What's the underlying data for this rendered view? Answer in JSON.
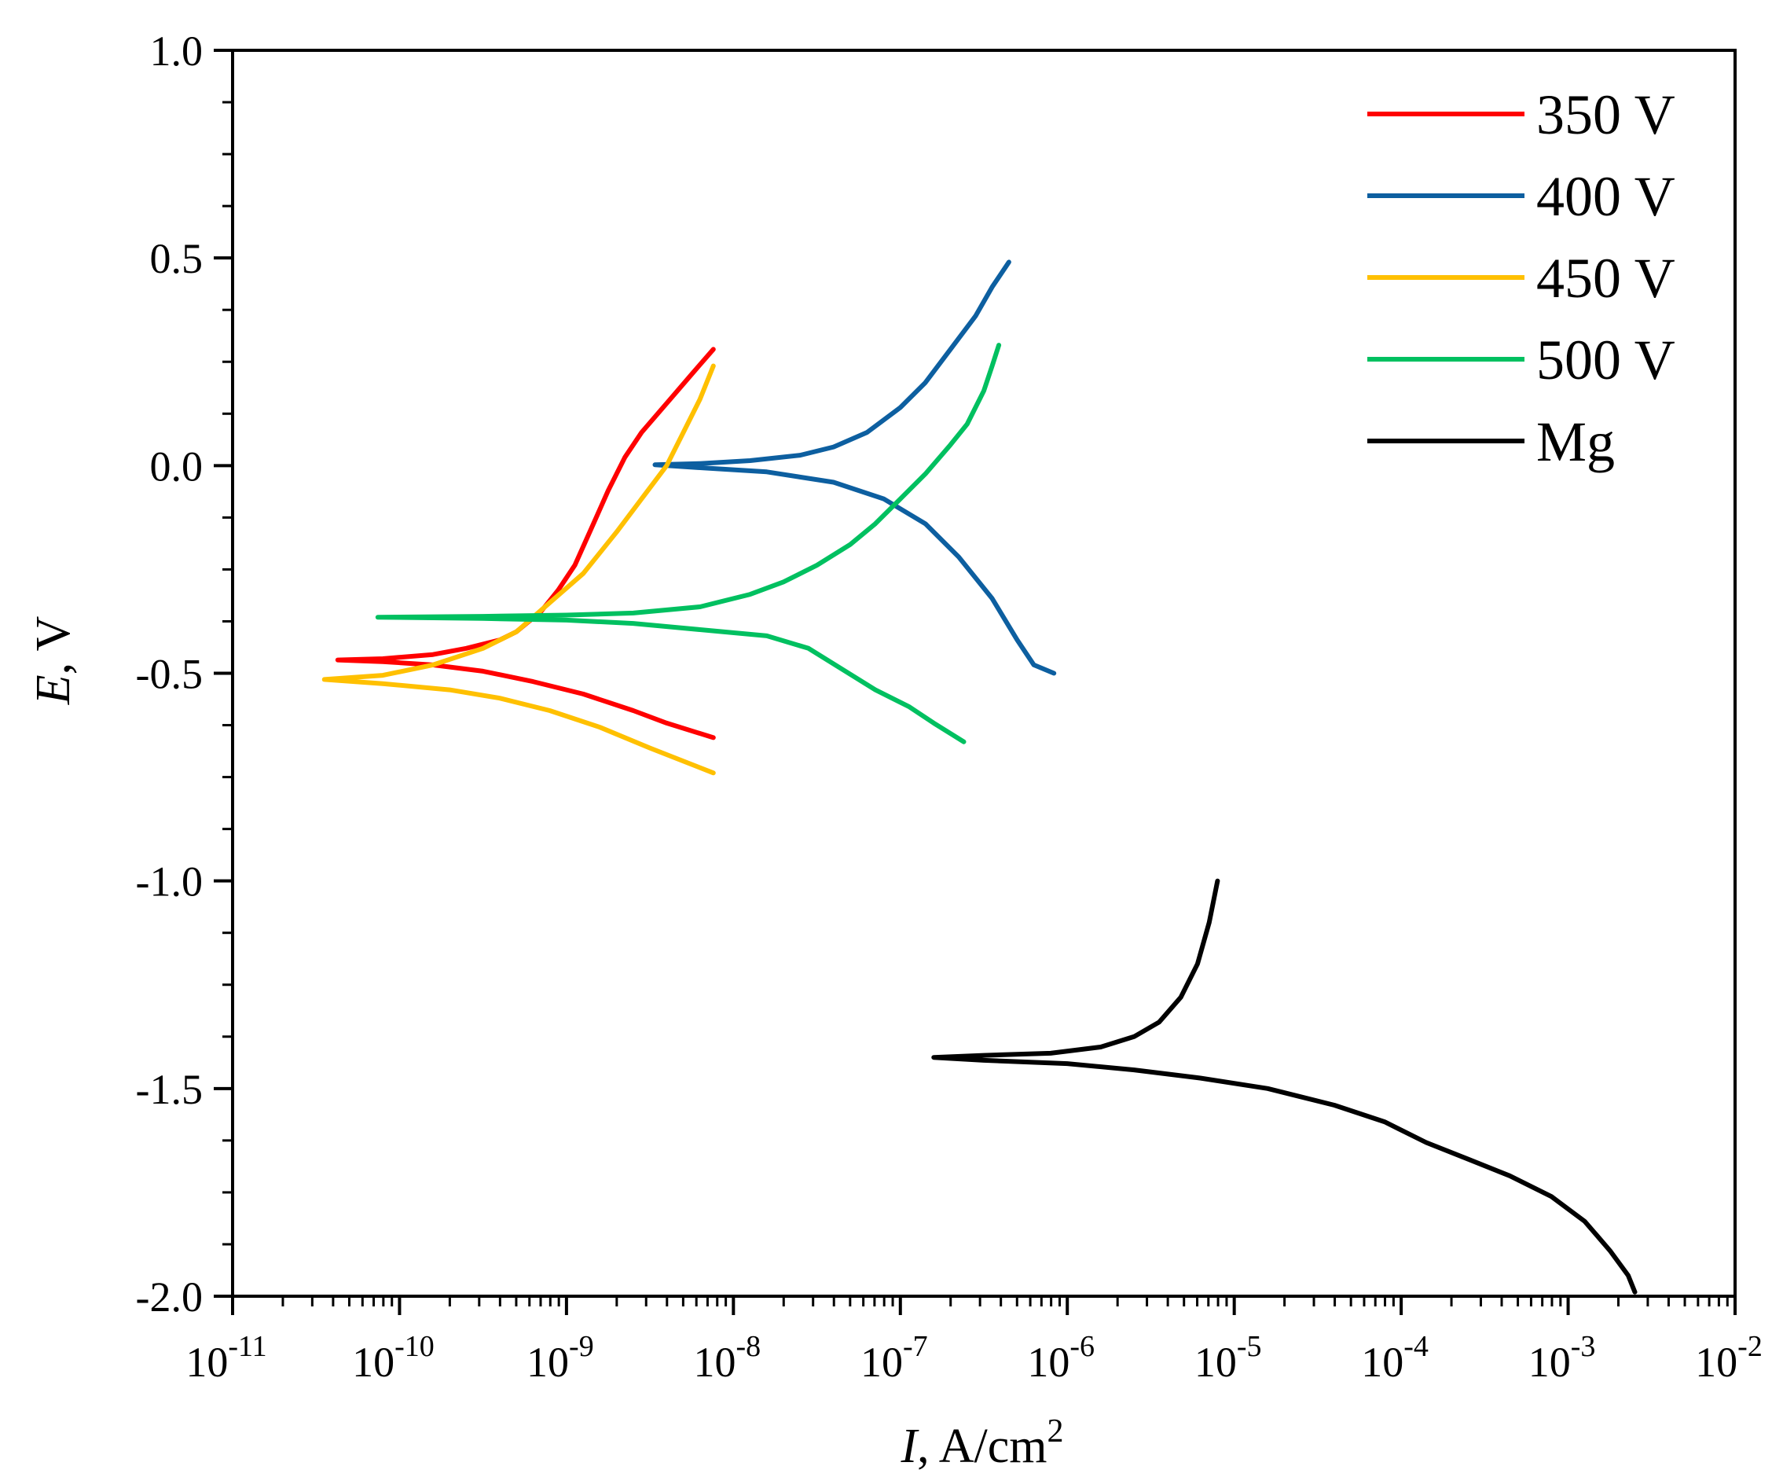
{
  "chart_data": {
    "type": "line",
    "x_scale": "log",
    "xlim_exp": [
      -11,
      -2
    ],
    "ylim": [
      -2.0,
      1.0
    ],
    "ylabel": {
      "var": "E",
      "unit": ", V"
    },
    "xlabel": {
      "var": "I",
      "unit": ", A/cm",
      "sup": "2"
    },
    "x_ticks": [
      {
        "base": "10",
        "exp": "-11",
        "value_exp": -11
      },
      {
        "base": "10",
        "exp": "-10",
        "value_exp": -10
      },
      {
        "base": "10",
        "exp": "-9",
        "value_exp": -9
      },
      {
        "base": "10",
        "exp": "-8",
        "value_exp": -8
      },
      {
        "base": "10",
        "exp": "-7",
        "value_exp": -7
      },
      {
        "base": "10",
        "exp": "-6",
        "value_exp": -6
      },
      {
        "base": "10",
        "exp": "-5",
        "value_exp": -5
      },
      {
        "base": "10",
        "exp": "-4",
        "value_exp": -4
      },
      {
        "base": "10",
        "exp": "-3",
        "value_exp": -3
      },
      {
        "base": "10",
        "exp": "-2",
        "value_exp": -2
      }
    ],
    "y_ticks": [
      {
        "label": "1.0",
        "value": 1.0
      },
      {
        "label": "0.5",
        "value": 0.5
      },
      {
        "label": "0.0",
        "value": 0.0
      },
      {
        "label": "-0.5",
        "value": -0.5
      },
      {
        "label": "-1.0",
        "value": -1.0
      },
      {
        "label": "-1.5",
        "value": -1.5
      },
      {
        "label": "-2.0",
        "value": -2.0
      }
    ],
    "legend_position": "top-right",
    "series": [
      {
        "name": "350 V",
        "color": "#ff0000",
        "points": [
          [
            -8.12,
            0.28
          ],
          [
            -8.25,
            0.22
          ],
          [
            -8.4,
            0.15
          ],
          [
            -8.55,
            0.08
          ],
          [
            -8.65,
            0.02
          ],
          [
            -8.75,
            -0.06
          ],
          [
            -8.85,
            -0.15
          ],
          [
            -8.95,
            -0.24
          ],
          [
            -9.05,
            -0.3
          ],
          [
            -9.15,
            -0.35
          ],
          [
            -9.3,
            -0.4
          ],
          [
            -9.4,
            -0.42
          ],
          [
            -9.6,
            -0.44
          ],
          [
            -9.8,
            -0.455
          ],
          [
            -10.1,
            -0.465
          ],
          [
            -10.37,
            -0.468
          ],
          [
            -10.1,
            -0.472
          ],
          [
            -9.8,
            -0.48
          ],
          [
            -9.5,
            -0.495
          ],
          [
            -9.2,
            -0.52
          ],
          [
            -8.9,
            -0.55
          ],
          [
            -8.6,
            -0.59
          ],
          [
            -8.4,
            -0.62
          ],
          [
            -8.12,
            -0.655
          ]
        ]
      },
      {
        "name": "400 V",
        "color": "#0d5fa0",
        "points": [
          [
            -6.35,
            0.49
          ],
          [
            -6.45,
            0.43
          ],
          [
            -6.55,
            0.36
          ],
          [
            -6.7,
            0.28
          ],
          [
            -6.85,
            0.2
          ],
          [
            -7.0,
            0.14
          ],
          [
            -7.2,
            0.08
          ],
          [
            -7.4,
            0.045
          ],
          [
            -7.6,
            0.025
          ],
          [
            -7.9,
            0.012
          ],
          [
            -8.2,
            0.005
          ],
          [
            -8.47,
            0.002
          ],
          [
            -8.2,
            -0.005
          ],
          [
            -7.8,
            -0.015
          ],
          [
            -7.4,
            -0.04
          ],
          [
            -7.1,
            -0.08
          ],
          [
            -6.85,
            -0.14
          ],
          [
            -6.65,
            -0.22
          ],
          [
            -6.45,
            -0.32
          ],
          [
            -6.3,
            -0.42
          ],
          [
            -6.2,
            -0.48
          ],
          [
            -6.08,
            -0.5
          ]
        ]
      },
      {
        "name": "450 V",
        "color": "#ffc000",
        "points": [
          [
            -8.12,
            0.24
          ],
          [
            -8.2,
            0.16
          ],
          [
            -8.3,
            0.08
          ],
          [
            -8.4,
            0.0
          ],
          [
            -8.55,
            -0.08
          ],
          [
            -8.7,
            -0.16
          ],
          [
            -8.9,
            -0.26
          ],
          [
            -9.1,
            -0.33
          ],
          [
            -9.3,
            -0.4
          ],
          [
            -9.5,
            -0.44
          ],
          [
            -9.8,
            -0.48
          ],
          [
            -10.1,
            -0.505
          ],
          [
            -10.45,
            -0.515
          ],
          [
            -10.1,
            -0.525
          ],
          [
            -9.7,
            -0.54
          ],
          [
            -9.4,
            -0.56
          ],
          [
            -9.1,
            -0.59
          ],
          [
            -8.8,
            -0.63
          ],
          [
            -8.5,
            -0.68
          ],
          [
            -8.12,
            -0.74
          ]
        ]
      },
      {
        "name": "500 V",
        "color": "#00c060",
        "points": [
          [
            -6.41,
            0.29
          ],
          [
            -6.45,
            0.24
          ],
          [
            -6.5,
            0.18
          ],
          [
            -6.6,
            0.1
          ],
          [
            -6.7,
            0.05
          ],
          [
            -6.85,
            -0.02
          ],
          [
            -7.0,
            -0.08
          ],
          [
            -7.15,
            -0.14
          ],
          [
            -7.3,
            -0.19
          ],
          [
            -7.5,
            -0.24
          ],
          [
            -7.7,
            -0.28
          ],
          [
            -7.9,
            -0.31
          ],
          [
            -8.2,
            -0.34
          ],
          [
            -8.6,
            -0.355
          ],
          [
            -9.0,
            -0.36
          ],
          [
            -9.5,
            -0.363
          ],
          [
            -10.13,
            -0.365
          ],
          [
            -9.5,
            -0.368
          ],
          [
            -9.0,
            -0.372
          ],
          [
            -8.6,
            -0.38
          ],
          [
            -8.2,
            -0.395
          ],
          [
            -7.8,
            -0.41
          ],
          [
            -7.55,
            -0.44
          ],
          [
            -7.35,
            -0.49
          ],
          [
            -7.15,
            -0.54
          ],
          [
            -6.95,
            -0.58
          ],
          [
            -6.8,
            -0.62
          ],
          [
            -6.62,
            -0.665
          ]
        ]
      },
      {
        "name": "Mg",
        "color": "#000000",
        "points": [
          [
            -5.1,
            -1.0
          ],
          [
            -5.15,
            -1.1
          ],
          [
            -5.22,
            -1.2
          ],
          [
            -5.32,
            -1.28
          ],
          [
            -5.45,
            -1.34
          ],
          [
            -5.6,
            -1.375
          ],
          [
            -5.8,
            -1.4
          ],
          [
            -6.1,
            -1.415
          ],
          [
            -6.5,
            -1.42
          ],
          [
            -6.8,
            -1.425
          ],
          [
            -6.5,
            -1.432
          ],
          [
            -6.0,
            -1.44
          ],
          [
            -5.6,
            -1.455
          ],
          [
            -5.2,
            -1.475
          ],
          [
            -4.8,
            -1.5
          ],
          [
            -4.4,
            -1.54
          ],
          [
            -4.1,
            -1.58
          ],
          [
            -3.85,
            -1.63
          ],
          [
            -3.6,
            -1.67
          ],
          [
            -3.35,
            -1.71
          ],
          [
            -3.1,
            -1.76
          ],
          [
            -2.9,
            -1.82
          ],
          [
            -2.75,
            -1.89
          ],
          [
            -2.64,
            -1.95
          ],
          [
            -2.6,
            -1.99
          ]
        ]
      }
    ]
  }
}
